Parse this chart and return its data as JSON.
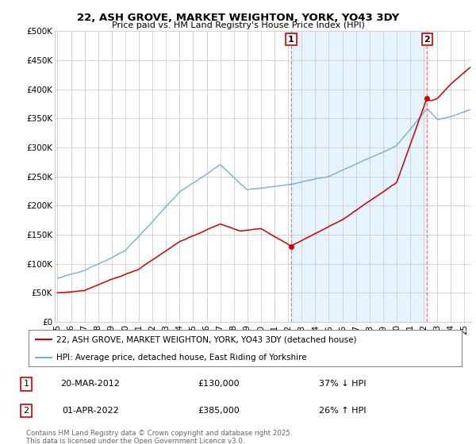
{
  "title": "22, ASH GROVE, MARKET WEIGHTON, YORK, YO43 3DY",
  "subtitle": "Price paid vs. HM Land Registry's House Price Index (HPI)",
  "ylabel_ticks": [
    "£0",
    "£50K",
    "£100K",
    "£150K",
    "£200K",
    "£250K",
    "£300K",
    "£350K",
    "£400K",
    "£450K",
    "£500K"
  ],
  "ytick_vals": [
    0,
    50000,
    100000,
    150000,
    200000,
    250000,
    300000,
    350000,
    400000,
    450000,
    500000
  ],
  "ylim": [
    0,
    500000
  ],
  "xlim_start": 1994.8,
  "xlim_end": 2025.5,
  "hpi_color": "#74b0d4",
  "hpi_fill_color": "#ddeeff",
  "price_color": "#cc0000",
  "dashed_color": "#e06060",
  "legend_label_red": "22, ASH GROVE, MARKET WEIGHTON, YORK, YO43 3DY (detached house)",
  "legend_label_blue": "HPI: Average price, detached house, East Riding of Yorkshire",
  "point1_year": 2012.22,
  "point1_price": 130000,
  "point2_year": 2022.25,
  "point2_price": 385000,
  "table_rows": [
    {
      "num": "1",
      "date": "20-MAR-2012",
      "price": "£130,000",
      "change": "37% ↓ HPI"
    },
    {
      "num": "2",
      "date": "01-APR-2022",
      "price": "£385,000",
      "change": "26% ↑ HPI"
    }
  ],
  "footer": "Contains HM Land Registry data © Crown copyright and database right 2025.\nThis data is licensed under the Open Government Licence v3.0.",
  "background_color": "#ffffff",
  "grid_color": "#cccccc",
  "xtick_years": [
    1995,
    1996,
    1997,
    1998,
    1999,
    2000,
    2001,
    2002,
    2003,
    2004,
    2005,
    2006,
    2007,
    2008,
    2009,
    2010,
    2011,
    2012,
    2013,
    2014,
    2015,
    2016,
    2017,
    2018,
    2019,
    2020,
    2021,
    2022,
    2023,
    2024,
    2025
  ]
}
